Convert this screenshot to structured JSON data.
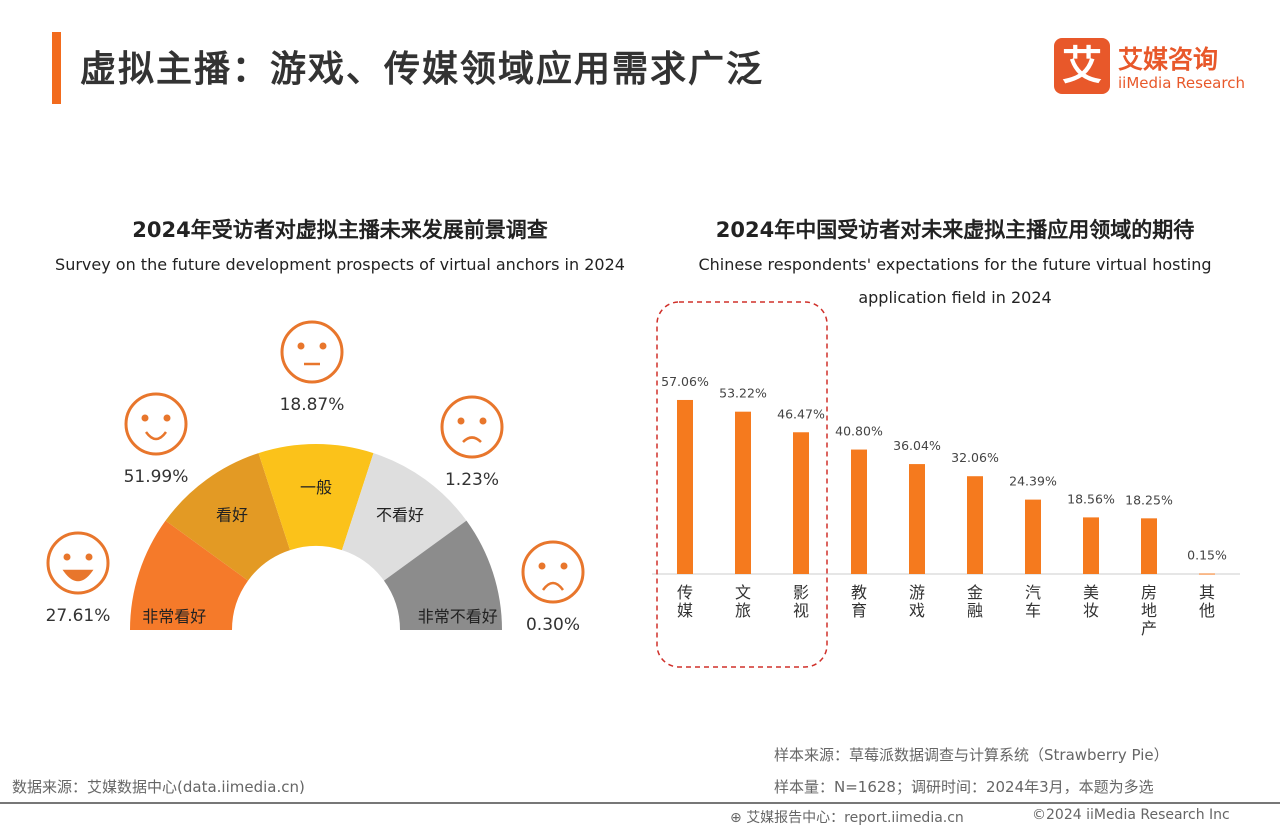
{
  "header": {
    "title": "虚拟主播：游戏、传媒领域应用需求广泛",
    "logo_glyph": "艾",
    "logo_cn": "艾媒咨询",
    "logo_en": "iiMedia Research",
    "accent": "#f26b1d"
  },
  "chart_data": [
    {
      "type": "pie",
      "variant": "semicircle-gauge",
      "title": "2024年受访者对虚拟主播未来发展前景调查",
      "subtitle": "Survey on the future development prospects of virtual anchors in 2024",
      "categories": [
        "非常看好",
        "看好",
        "一般",
        "不看好",
        "非常不看好"
      ],
      "values": [
        27.61,
        51.99,
        18.87,
        1.23,
        0.3
      ],
      "labels": [
        "27.61%",
        "51.99%",
        "18.87%",
        "1.23%",
        "0.30%"
      ],
      "icons": [
        "laughing-face-icon",
        "smiling-face-icon",
        "neutral-face-icon",
        "frowning-face-icon",
        "crying-face-icon"
      ],
      "colors": [
        "#f57a2a",
        "#e39a24",
        "#fbc21a",
        "#dedede",
        "#8c8c8c"
      ]
    },
    {
      "type": "bar",
      "title": "2024年中国受访者对未来虚拟主播应用领域的期待",
      "subtitle": "Chinese respondents' expectations for the future virtual hosting application field in 2024",
      "categories": [
        "传媒",
        "文旅",
        "影视",
        "教育",
        "游戏",
        "金融",
        "汽车",
        "美妆",
        "房地产",
        "其他"
      ],
      "values": [
        57.06,
        53.22,
        46.47,
        40.8,
        36.04,
        32.06,
        24.39,
        18.56,
        18.25,
        0.15
      ],
      "labels": [
        "57.06%",
        "53.22%",
        "46.47%",
        "40.80%",
        "36.04%",
        "32.06%",
        "24.39%",
        "18.56%",
        "18.25%",
        "0.15%"
      ],
      "highlighted": [
        "传媒",
        "文旅",
        "影视"
      ],
      "color": "#f57a1e",
      "ylim": [
        0,
        60
      ]
    }
  ],
  "footer": {
    "source": "数据来源：艾媒数据中心(data.iimedia.cn)",
    "sample_source": "样本来源：草莓派数据调查与计算系统（Strawberry Pie）",
    "sample_size": "样本量：N=1628；调研时间：2024年3月，本题为多选",
    "report": "艾媒报告中心：report.iimedia.cn",
    "copyright": "©2024  iiMedia Research  Inc"
  }
}
